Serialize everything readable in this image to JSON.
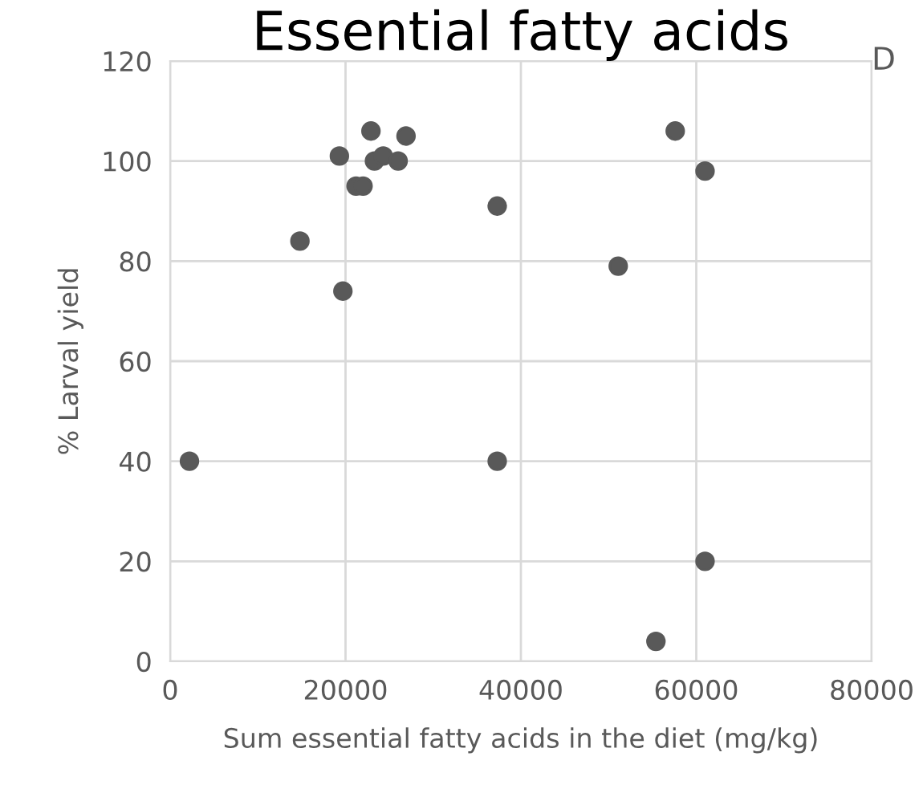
{
  "chart_data": {
    "type": "scatter",
    "title": "Essential fatty acids",
    "xlabel": "Sum essential fatty acids in the diet (mg/kg)",
    "ylabel": "% Larval yield",
    "annotations": [
      "D"
    ],
    "series": [
      {
        "color": "#595959",
        "x": [
          2200,
          37300,
          55400,
          61000,
          19300,
          22900,
          26900,
          23300,
          24300,
          26000,
          21200,
          22000,
          14800,
          19700,
          37300,
          51100,
          57600,
          61000
        ],
        "values": [
          40,
          40,
          4,
          20,
          101,
          106,
          105,
          100,
          101,
          100,
          95,
          95,
          84,
          74,
          91,
          79,
          106,
          98
        ]
      }
    ],
    "xlim": [
      0,
      80000
    ],
    "xticks": [
      0,
      20000,
      40000,
      60000,
      80000
    ],
    "ylim": [
      0,
      120
    ],
    "yticks": [
      0,
      20,
      40,
      60,
      80,
      100,
      120
    ],
    "grid": true,
    "marker": "circle"
  }
}
